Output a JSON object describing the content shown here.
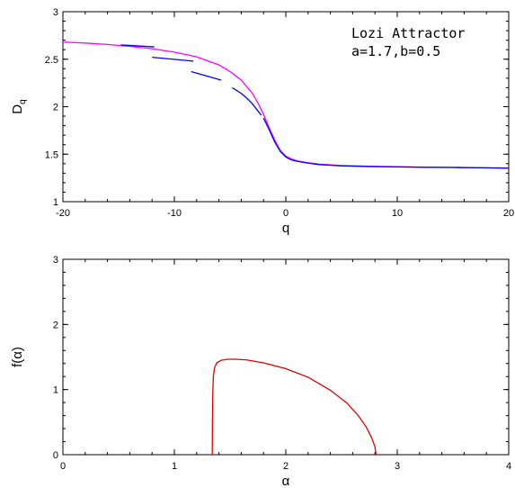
{
  "chart_data": [
    {
      "type": "line",
      "xlabel": "q",
      "ylabel": "D",
      "ylabel_sub": "q",
      "xlim": [
        -20,
        20
      ],
      "ylim": [
        1,
        3
      ],
      "xticks": [
        -20,
        -10,
        0,
        10,
        20
      ],
      "yticks": [
        1,
        1.5,
        2,
        2.5,
        3
      ],
      "xtick_labels": [
        "-20",
        "-10",
        "0",
        "10",
        "20"
      ],
      "ytick_labels": [
        "1",
        "1.5",
        "2",
        "2.5",
        "3"
      ],
      "annotations": [
        "Lozi Attractor",
        "a=1.7,b=0.5"
      ],
      "series": [
        {
          "color": "#ff00ff",
          "x": [
            -20,
            -18,
            -16,
            -14,
            -12,
            -10,
            -8,
            -6,
            -5,
            -4,
            -3,
            -2.5,
            -2,
            -1.5,
            -1,
            -0.5,
            0,
            0.5,
            1,
            2,
            3,
            5,
            7.5,
            10,
            12.5,
            15,
            17.5,
            20
          ],
          "y": [
            2.68,
            2.67,
            2.655,
            2.635,
            2.61,
            2.575,
            2.525,
            2.44,
            2.37,
            2.28,
            2.14,
            2.04,
            1.92,
            1.78,
            1.65,
            1.54,
            1.48,
            1.45,
            1.43,
            1.41,
            1.395,
            1.38,
            1.373,
            1.368,
            1.364,
            1.361,
            1.358,
            1.355
          ]
        },
        {
          "color": "#0000ff",
          "x": [
            -2,
            -1.5,
            -1,
            -0.5,
            0,
            0.5,
            1,
            2,
            3,
            5,
            7.5,
            10,
            12.5,
            15,
            17.5,
            20
          ],
          "y": [
            1.88,
            1.76,
            1.63,
            1.53,
            1.47,
            1.44,
            1.425,
            1.405,
            1.39,
            1.377,
            1.37,
            1.366,
            1.362,
            1.36,
            1.357,
            1.352
          ]
        },
        {
          "color": "#0000ff",
          "x": [
            -4.8,
            -4,
            -3.5,
            -3,
            -2.6,
            -2.2
          ],
          "y": [
            2.2,
            2.14,
            2.09,
            2.03,
            1.97,
            1.91
          ]
        },
        {
          "color": "#0000ff",
          "x": [
            -8.5,
            -5.8
          ],
          "y": [
            2.37,
            2.28
          ]
        },
        {
          "color": "#0000ff",
          "x": [
            -12,
            -8.3
          ],
          "y": [
            2.52,
            2.48
          ]
        },
        {
          "color": "#0000ff",
          "x": [
            -14.8,
            -11.8
          ],
          "y": [
            2.65,
            2.63
          ]
        }
      ]
    },
    {
      "type": "line",
      "xlabel": "α",
      "ylabel": "f(α)",
      "xlim": [
        0,
        4
      ],
      "ylim": [
        0,
        3
      ],
      "xticks": [
        0,
        1,
        2,
        3,
        4
      ],
      "yticks": [
        0,
        1,
        2,
        3
      ],
      "xtick_labels": [
        "0",
        "1",
        "2",
        "3",
        "4"
      ],
      "ytick_labels": [
        "0",
        "1",
        "2",
        "3"
      ],
      "series": [
        {
          "color": "#e00000",
          "x": [
            1.34,
            1.342,
            1.345,
            1.35,
            1.36,
            1.38,
            1.42,
            1.48,
            1.55,
            1.65,
            1.8,
            2.0,
            2.2,
            2.4,
            2.55,
            2.65,
            2.72,
            2.77,
            2.8,
            2.81
          ],
          "y": [
            0.0,
            0.5,
            0.95,
            1.2,
            1.33,
            1.41,
            1.45,
            1.465,
            1.465,
            1.455,
            1.41,
            1.32,
            1.19,
            0.99,
            0.79,
            0.6,
            0.43,
            0.26,
            0.12,
            0.0
          ]
        }
      ]
    }
  ]
}
